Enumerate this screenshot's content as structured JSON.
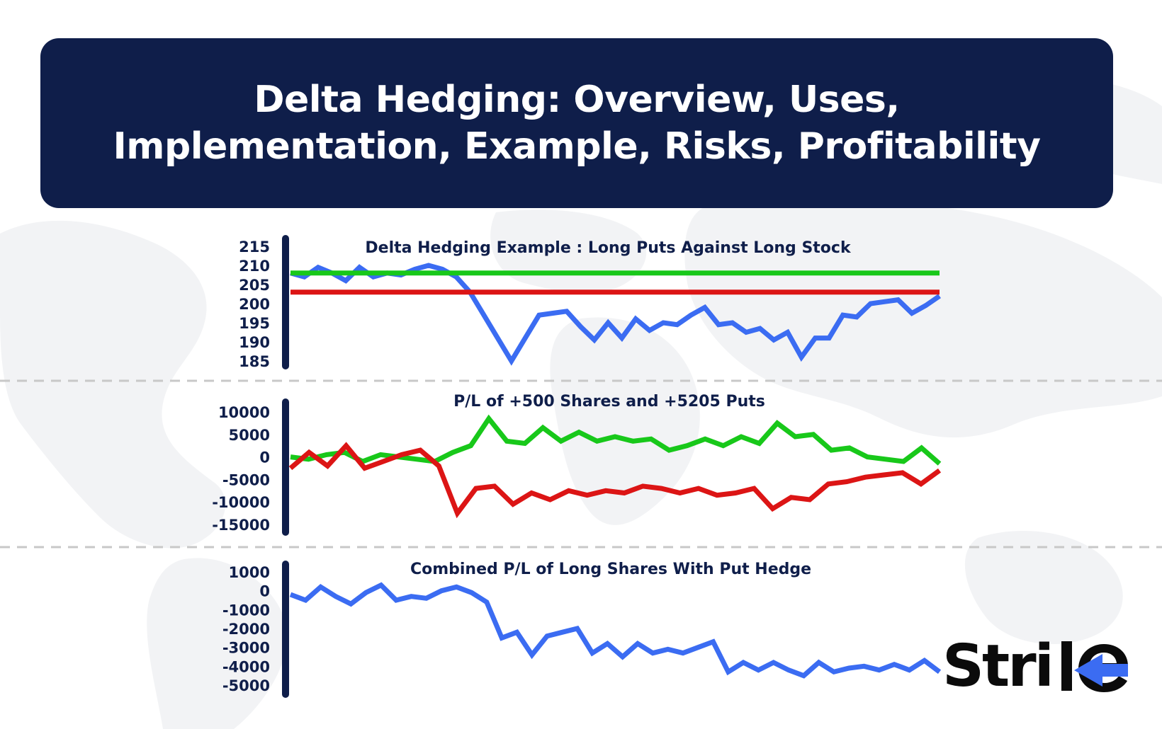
{
  "banner": {
    "title_line1": "Delta Hedging: Overview, Uses,",
    "title_line2": "Implementation, Example, Risks, Profitability"
  },
  "logo": {
    "text": "Strike",
    "visible_text": "Stri"
  },
  "colors": {
    "navy": "#0f1e4a",
    "blue": "#3b6cf2",
    "green": "#18c81a",
    "red": "#dc1515",
    "divider": "#c8c8c8"
  },
  "chart_data": [
    {
      "type": "line",
      "title": "Delta Hedging Example : Long Puts Against Long Stock",
      "yticks": [
        215,
        210,
        205,
        200,
        195,
        190,
        185
      ],
      "ylim": [
        185,
        215
      ],
      "grid": false,
      "series": [
        {
          "color": "#3b6cf2",
          "values": [
            208,
            207,
            209.5,
            208,
            206,
            209.5,
            207,
            208,
            207.5,
            209,
            210,
            209,
            207,
            203,
            197,
            191,
            185,
            191,
            197,
            197.5,
            198,
            194,
            190.5,
            195,
            191,
            196,
            193,
            195,
            194.5,
            197,
            199,
            194.5,
            195,
            192.5,
            193.5,
            190.5,
            192.5,
            186,
            191,
            191,
            197,
            196.5,
            200,
            200.5,
            201,
            197.5,
            199.5,
            202
          ]
        },
        {
          "color": "#18c81a",
          "values": [
            208,
            208
          ]
        },
        {
          "color": "#dc1515",
          "values": [
            203,
            203
          ]
        }
      ]
    },
    {
      "type": "line",
      "title": "P/L of +500 Shares and +5205 Puts",
      "yticks": [
        10000,
        5000,
        0,
        -5000,
        -10000,
        -15000
      ],
      "ylim": [
        -15000,
        10000
      ],
      "grid": false,
      "series": [
        {
          "color": "#18c81a",
          "values": [
            0,
            -500,
            500,
            1000,
            -1000,
            500,
            0,
            -500,
            -1000,
            1000,
            2500,
            8500,
            3500,
            3000,
            6500,
            3500,
            5500,
            3500,
            4500,
            3500,
            4000,
            1500,
            2500,
            4000,
            2500,
            4500,
            3000,
            7500,
            4500,
            5000,
            1500,
            2000,
            0,
            -500,
            -1000,
            2000,
            -1500
          ]
        },
        {
          "color": "#dc1515",
          "values": [
            -2500,
            1000,
            -2000,
            2500,
            -2500,
            -1000,
            500,
            1500,
            -2000,
            -12500,
            -7000,
            -6500,
            -10500,
            -8000,
            -9500,
            -7500,
            -8500,
            -7500,
            -8000,
            -6500,
            -7000,
            -8000,
            -7000,
            -8500,
            -8000,
            -7000,
            -11500,
            -9000,
            -9500,
            -6000,
            -5500,
            -4500,
            -4000,
            -3500,
            -6000,
            -3000
          ]
        }
      ]
    },
    {
      "type": "line",
      "title": "Combined P/L of Long Shares With Put Hedge",
      "yticks": [
        1000,
        0,
        -1000,
        -2000,
        -3000,
        -4000,
        -5000
      ],
      "ylim": [
        -5000,
        1000
      ],
      "grid": false,
      "series": [
        {
          "color": "#3b6cf2",
          "values": [
            -200,
            -500,
            200,
            -300,
            -700,
            -100,
            300,
            -500,
            -300,
            -400,
            0,
            200,
            -100,
            -600,
            -2500,
            -2200,
            -3400,
            -2400,
            -2200,
            -2000,
            -3300,
            -2800,
            -3500,
            -2800,
            -3300,
            -3100,
            -3300,
            -3000,
            -2700,
            -4300,
            -3800,
            -4200,
            -3800,
            -4200,
            -4500,
            -3800,
            -4300,
            -4100,
            -4000,
            -4200,
            -3900,
            -4200,
            -3700,
            -4300
          ]
        }
      ]
    }
  ]
}
